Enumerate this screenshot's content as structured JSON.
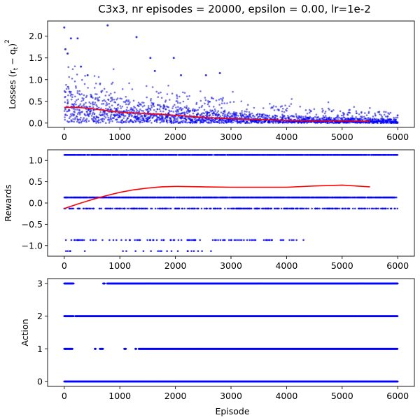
{
  "figure": {
    "title": "C3x3, nr episodes = 20000, epsilon = 0.00, lr=1e-2",
    "xlabel": "Episode"
  },
  "colors": {
    "scatter": "#0000ff",
    "trend": "#ff0000"
  },
  "chart_data": [
    {
      "type": "scatter",
      "name": "losses",
      "title": "C3x3, nr episodes = 20000, epsilon = 0.00, lr=1e-2",
      "ylabel_main": "Losses (r",
      "ylabel_sub1": "t",
      "ylabel_mid": " − q",
      "ylabel_sub2": "t",
      "ylabel_close": ")",
      "ylabel_sup": "2",
      "xlim": [
        -300,
        6300
      ],
      "ylim": [
        -0.1,
        2.35
      ],
      "xticks": [
        0,
        1000,
        2000,
        3000,
        4000,
        5000,
        6000
      ],
      "yticks": [
        0.0,
        0.5,
        1.0,
        1.5,
        2.0
      ],
      "ytick_labels": [
        "0.0",
        "0.5",
        "1.0",
        "1.5",
        "2.0"
      ],
      "trend": {
        "x": [
          0,
          250,
          500,
          750,
          1000,
          1250,
          1500,
          1750,
          2000,
          2500,
          3000,
          3500,
          4000,
          4500,
          5000,
          5500
        ],
        "y": [
          0.36,
          0.36,
          0.33,
          0.29,
          0.25,
          0.23,
          0.22,
          0.2,
          0.18,
          0.13,
          0.1,
          0.08,
          0.06,
          0.05,
          0.05,
          0.04
        ]
      },
      "highlights": {
        "x": [
          0,
          20,
          60,
          120,
          240,
          300,
          420,
          780,
          1300,
          1550,
          1630,
          1970,
          2100,
          2550,
          2800
        ],
        "y": [
          2.2,
          1.7,
          1.6,
          1.95,
          1.95,
          1.3,
          1.1,
          2.25,
          1.98,
          1.5,
          1.2,
          1.5,
          1.1,
          1.1,
          1.15
        ]
      }
    },
    {
      "type": "scatter",
      "name": "rewards",
      "ylabel": "Rewards",
      "xlim": [
        -300,
        6300
      ],
      "ylim": [
        -1.25,
        1.25
      ],
      "xticks": [
        0,
        1000,
        2000,
        3000,
        4000,
        5000,
        6000
      ],
      "yticks": [
        -1.0,
        -0.5,
        0.0,
        0.5,
        1.0
      ],
      "ytick_labels": [
        "−1.0",
        "−0.5",
        "0.0",
        "0.5",
        "1.0"
      ],
      "levels": [
        {
          "y": 1.13,
          "x_start": 0,
          "x_end": 6000,
          "density": "dense"
        },
        {
          "y": 0.13,
          "x_start": 0,
          "x_end": 6000,
          "density": "dense"
        },
        {
          "y": -0.13,
          "x_start": 0,
          "x_end": 6000,
          "density": "medium"
        },
        {
          "y": -0.87,
          "x_start": 0,
          "x_end": 4400,
          "density": "sparse"
        },
        {
          "y": -1.13,
          "x_start": 0,
          "x_end": 2650,
          "density": "very-sparse"
        }
      ],
      "trend": {
        "x": [
          0,
          250,
          500,
          750,
          1000,
          1250,
          1500,
          1750,
          2000,
          2500,
          3000,
          3500,
          4000,
          4500,
          5000,
          5500
        ],
        "y": [
          -0.13,
          -0.02,
          0.08,
          0.17,
          0.25,
          0.31,
          0.35,
          0.38,
          0.39,
          0.38,
          0.37,
          0.37,
          0.37,
          0.4,
          0.42,
          0.38
        ]
      }
    },
    {
      "type": "scatter",
      "name": "action",
      "ylabel": "Action",
      "xlabel": "Episode",
      "xlim": [
        -300,
        6300
      ],
      "ylim": [
        -0.15,
        3.15
      ],
      "xticks": [
        0,
        1000,
        2000,
        3000,
        4000,
        5000,
        6000
      ],
      "yticks": [
        0,
        1,
        2,
        3
      ],
      "ytick_labels": [
        "0",
        "1",
        "2",
        "3"
      ],
      "levels": [
        {
          "y": 3,
          "segments": [
            [
              0,
              170
            ],
            [
              700,
              730
            ],
            [
              770,
              6000
            ]
          ]
        },
        {
          "y": 2,
          "segments": [
            [
              0,
              170
            ],
            [
              200,
              6000
            ]
          ]
        },
        {
          "y": 1,
          "segments": [
            [
              0,
              150
            ],
            [
              550,
              570
            ],
            [
              640,
              700
            ],
            [
              1080,
              1110
            ],
            [
              1280,
              1300
            ],
            [
              1340,
              6000
            ]
          ]
        },
        {
          "y": 0,
          "segments": [
            [
              0,
              6000
            ]
          ]
        }
      ]
    }
  ]
}
